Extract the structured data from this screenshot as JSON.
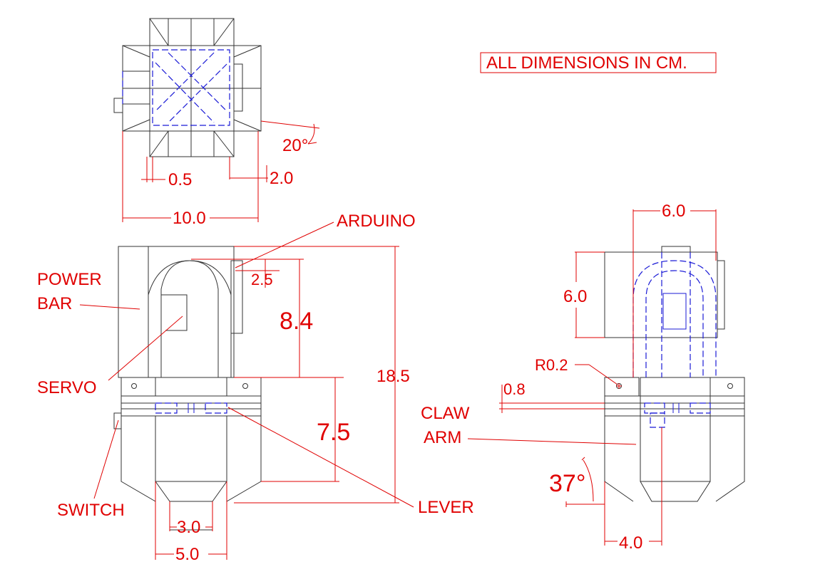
{
  "note": "ALL DIMENSIONS IN CM.",
  "top_view": {
    "dim_angle": "20°",
    "dim_small": "0.5",
    "dim_offset": "2.0",
    "dim_width": "10.0"
  },
  "front_view": {
    "label_arduino": "ARDUINO",
    "label_power_bar": [
      "POWER",
      "BAR"
    ],
    "label_servo": "SERVO",
    "label_switch": "SWITCH",
    "label_lever": "LEVER",
    "dim_top_gap": "2.5",
    "dim_upper_height": "8.4",
    "dim_lower_height": "7.5",
    "dim_total_height": "18.5",
    "dim_tip_inner": "3.0",
    "dim_tip_outer": "5.0"
  },
  "side_view": {
    "dim_width": "6.0",
    "dim_height": "6.0",
    "dim_radius": "R0.2",
    "dim_thickness": "0.8",
    "label_claw_arm": [
      "CLAW",
      "ARM"
    ],
    "dim_angle": "37°",
    "dim_claw_width": "4.0"
  }
}
